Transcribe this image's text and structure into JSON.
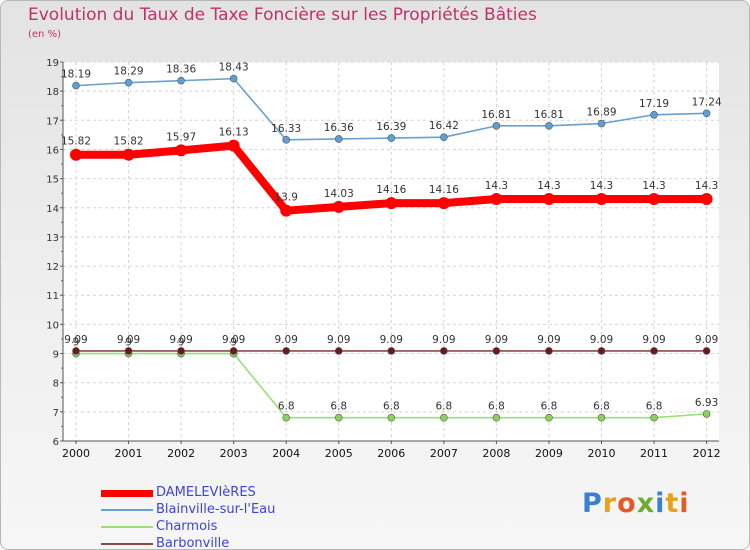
{
  "title": "Evolution du Taux de Taxe Foncière sur les Propriétés Bâties",
  "subtitle": "(en %)",
  "logo": {
    "text": "Proxiti",
    "letters": [
      {
        "ch": "P",
        "color": "#3b7fd0"
      },
      {
        "ch": "r",
        "color": "#e8a21c"
      },
      {
        "ch": "o",
        "color": "#e35b26"
      },
      {
        "ch": "x",
        "color": "#6aae2e"
      },
      {
        "ch": "i",
        "color": "#3b7fd0"
      },
      {
        "ch": "t",
        "color": "#e8a21c"
      },
      {
        "ch": "i",
        "color": "#e35b26"
      }
    ]
  },
  "chart_data": {
    "type": "line",
    "title": "Evolution du Taux de Taxe Foncière sur les Propriétés Bâties",
    "ylabel": "(en %)",
    "ylim": [
      6,
      19
    ],
    "yticks": [
      6,
      7,
      8,
      9,
      10,
      11,
      12,
      13,
      14,
      15,
      16,
      17,
      18,
      19
    ],
    "categories": [
      "2000",
      "2001",
      "2002",
      "2003",
      "2004",
      "2005",
      "2006",
      "2007",
      "2008",
      "2009",
      "2010",
      "2011",
      "2012"
    ],
    "series": [
      {
        "name": "DAMELEVIèRES",
        "color": "#ff0000",
        "bold": true,
        "values": [
          15.82,
          15.82,
          15.97,
          16.13,
          13.9,
          14.03,
          14.16,
          14.16,
          14.3,
          14.3,
          14.3,
          14.3,
          14.3
        ],
        "labels": [
          "15.82",
          "15.82",
          "15.97",
          "16.13",
          "13.9",
          "14.03",
          "14.16",
          "14.16",
          "14.3",
          "14.3",
          "14.3",
          "14.3",
          "14.3"
        ]
      },
      {
        "name": "Blainville-sur-l'Eau",
        "color": "#6aa0cd",
        "marker": "#5e9fd6",
        "values": [
          18.19,
          18.29,
          18.36,
          18.43,
          16.33,
          16.36,
          16.39,
          16.42,
          16.81,
          16.81,
          16.89,
          17.19,
          17.24
        ],
        "labels": [
          "18.19",
          "18.29",
          "18.36",
          "18.43",
          "16.33",
          "16.36",
          "16.39",
          "16.42",
          "16.81",
          "16.81",
          "16.89",
          "17.19",
          "17.24"
        ]
      },
      {
        "name": "Charmois",
        "color": "#98e07a",
        "marker": "#8ad35b",
        "values": [
          9,
          9,
          9,
          9,
          6.8,
          6.8,
          6.8,
          6.8,
          6.8,
          6.8,
          6.8,
          6.8,
          6.93
        ],
        "labels": [
          "9",
          "9",
          "9",
          "9",
          "6.8",
          "6.8",
          "6.8",
          "6.8",
          "6.8",
          "6.8",
          "6.8",
          "6.8",
          "6.93"
        ]
      },
      {
        "name": "Barbonville",
        "color": "#8a4a4a",
        "marker": "#6a1a1a",
        "values": [
          9.09,
          9.09,
          9.09,
          9.09,
          9.09,
          9.09,
          9.09,
          9.09,
          9.09,
          9.09,
          9.09,
          9.09,
          9.09
        ],
        "labels": [
          "9.09",
          "9.09",
          "9.09",
          "9.09",
          "9.09",
          "9.09",
          "9.09",
          "9.09",
          "9.09",
          "9.09",
          "9.09",
          "9.09",
          "9.09"
        ]
      }
    ]
  }
}
